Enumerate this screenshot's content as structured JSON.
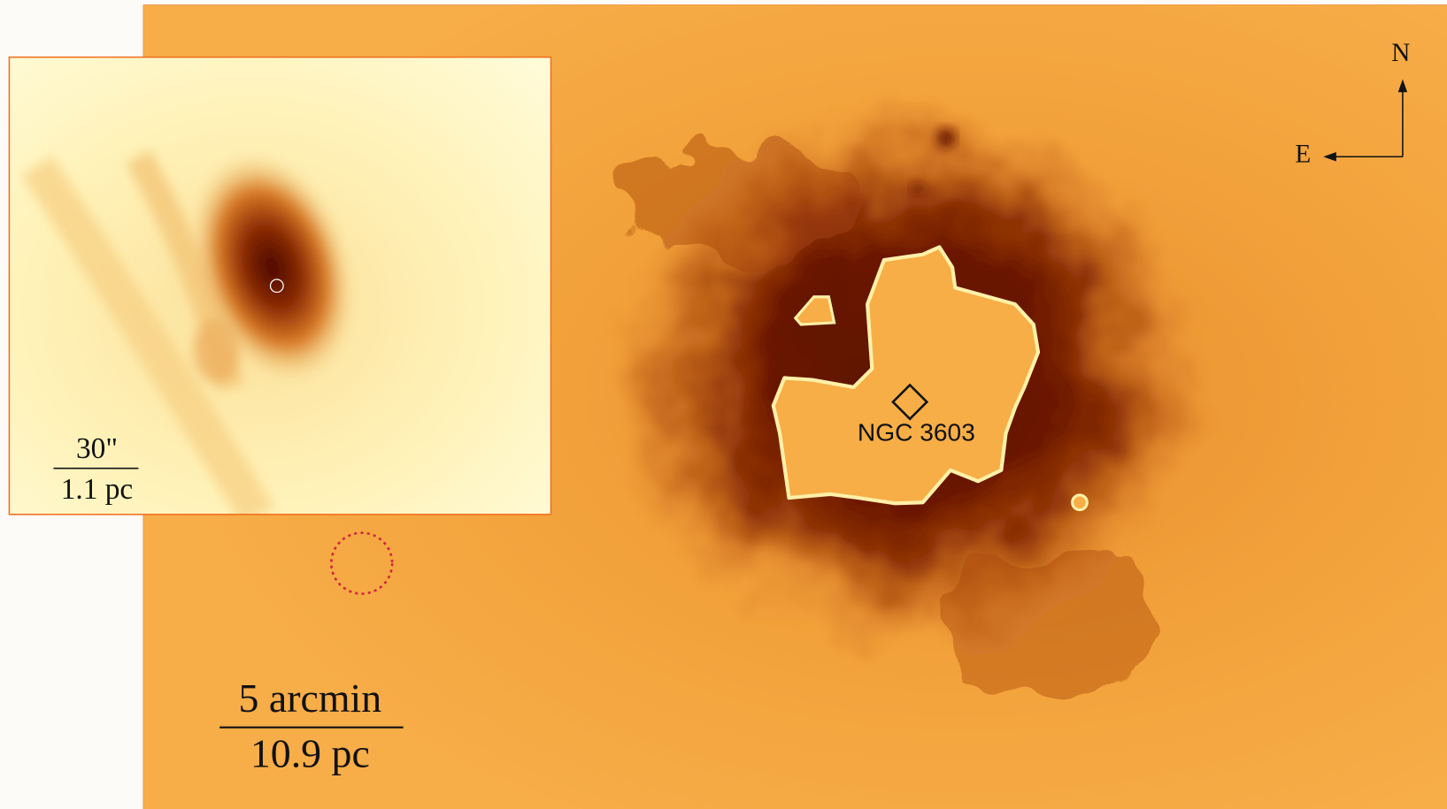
{
  "main_image": {
    "compass": {
      "north": "N",
      "east": "E"
    },
    "target_label": "NGC 3603",
    "scale_bar": {
      "top": "5 arcmin",
      "bottom": "10.9 pc"
    }
  },
  "inset": {
    "scale_bar": {
      "top": "30\"",
      "bottom": "1.1 pc"
    }
  }
}
